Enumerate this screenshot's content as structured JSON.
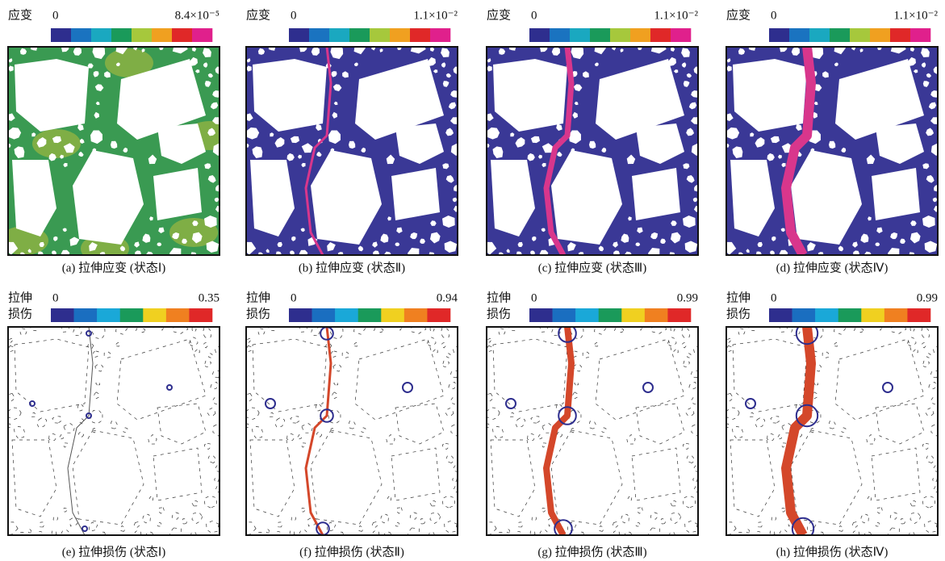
{
  "panels": [
    {
      "legend": [
        "应变"
      ],
      "min": "0",
      "max": "8.4×10⁻⁵",
      "caption": "(a) 拉伸应变 (状态Ⅰ)",
      "colorbar": [
        "#2e2e8e",
        "#1a73c0",
        "#1aa8c0",
        "#1a9a5a",
        "#a6c83c",
        "#f0a020",
        "#e02828",
        "#e0208c"
      ],
      "background": "#3a9a52"
    },
    {
      "legend": [
        "应变"
      ],
      "min": "0",
      "max": "1.1×10⁻²",
      "caption": "(b) 拉伸应变 (状态Ⅱ)",
      "colorbar": [
        "#2e2e8e",
        "#1a73c0",
        "#1aa8c0",
        "#1a9a5a",
        "#a6c83c",
        "#f0a020",
        "#e02828",
        "#e0208c"
      ],
      "background": "#3a3896"
    },
    {
      "legend": [
        "应变"
      ],
      "min": "0",
      "max": "1.1×10⁻²",
      "caption": "(c) 拉伸应变 (状态Ⅲ)",
      "colorbar": [
        "#2e2e8e",
        "#1a73c0",
        "#1aa8c0",
        "#1a9a5a",
        "#a6c83c",
        "#f0a020",
        "#e02828",
        "#e0208c"
      ],
      "background": "#3a3896"
    },
    {
      "legend": [
        "应变"
      ],
      "min": "0",
      "max": "1.1×10⁻²",
      "caption": "(d) 拉伸应变 (状态Ⅳ)",
      "colorbar": [
        "#2e2e8e",
        "#1a73c0",
        "#1aa8c0",
        "#1a9a5a",
        "#a6c83c",
        "#f0a020",
        "#e02828",
        "#e0208c"
      ],
      "background": "#3a3896"
    },
    {
      "legend": [
        "拉伸",
        "损伤"
      ],
      "min": "0",
      "max": "0.35",
      "caption": "(e) 拉伸损伤 (状态Ⅰ)",
      "colorbar": [
        "#2e2e8e",
        "#1a6ec0",
        "#1aa8d8",
        "#1a9a5a",
        "#f0d020",
        "#f08020",
        "#e02828"
      ],
      "background": "#ffffff"
    },
    {
      "legend": [
        "拉伸",
        "损伤"
      ],
      "min": "0",
      "max": "0.94",
      "caption": "(f) 拉伸损伤 (状态Ⅱ)",
      "colorbar": [
        "#2e2e8e",
        "#1a6ec0",
        "#1aa8d8",
        "#1a9a5a",
        "#f0d020",
        "#f08020",
        "#e02828"
      ],
      "background": "#ffffff"
    },
    {
      "legend": [
        "拉伸",
        "损伤"
      ],
      "min": "0",
      "max": "0.99",
      "caption": "(g) 拉伸损伤 (状态Ⅲ)",
      "colorbar": [
        "#2e2e8e",
        "#1a6ec0",
        "#1aa8d8",
        "#1a9a5a",
        "#f0d020",
        "#f08020",
        "#e02828"
      ],
      "background": "#ffffff"
    },
    {
      "legend": [
        "拉伸",
        "损伤"
      ],
      "min": "0",
      "max": "0.99",
      "caption": "(h) 拉伸损伤 (状态Ⅳ)",
      "colorbar": [
        "#2e2e8e",
        "#1a6ec0",
        "#1aa8d8",
        "#1a9a5a",
        "#f0d020",
        "#f08020",
        "#e02828"
      ],
      "background": "#ffffff"
    }
  ]
}
